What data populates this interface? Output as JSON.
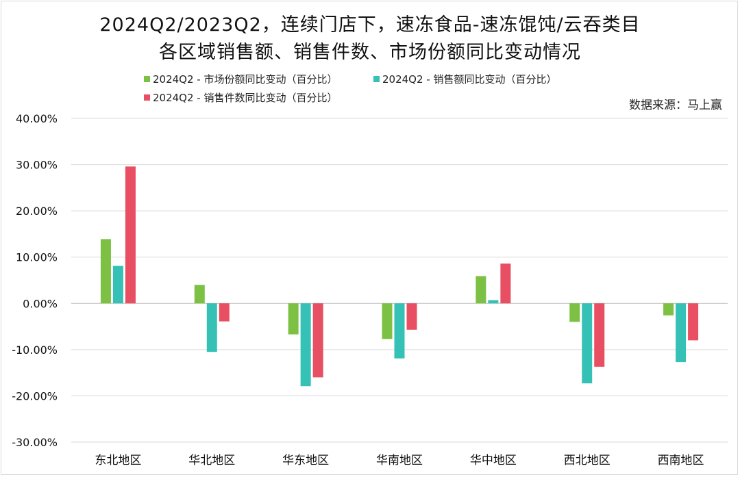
{
  "chart_data": {
    "type": "bar",
    "title": "2024Q2/2023Q2，连续门店下，速冻食品-速冻馄饨/云吞类目",
    "subtitle": "各区域销售额、销售件数、市场份额同比变动情况",
    "source": "数据来源：马上赢",
    "categories": [
      "东北地区",
      "华北地区",
      "华东地区",
      "华南地区",
      "华中地区",
      "西北地区",
      "西南地区"
    ],
    "series": [
      {
        "name": "2024Q2 - 市场份额同比变动（百分比）",
        "color": "#7dc144",
        "values": [
          13.9,
          4.0,
          -6.7,
          -7.7,
          5.9,
          -4.0,
          -2.6
        ]
      },
      {
        "name": "2024Q2 - 销售额同比变动（百分比）",
        "color": "#36c1b7",
        "values": [
          8.1,
          -10.5,
          -17.9,
          -11.9,
          0.7,
          -17.3,
          -12.7
        ]
      },
      {
        "name": "2024Q2 - 销售件数同比变动（百分比）",
        "color": "#e84f63",
        "values": [
          29.6,
          -3.9,
          -16.0,
          -5.7,
          8.6,
          -13.7,
          -8.0
        ]
      }
    ],
    "yticks": [
      "40.00%",
      "30.00%",
      "20.00%",
      "10.00%",
      "0.00%",
      "-10.00%",
      "-20.00%",
      "-30.00%"
    ],
    "ylim": [
      -30,
      40
    ],
    "grid": true,
    "legend_position": "top"
  }
}
